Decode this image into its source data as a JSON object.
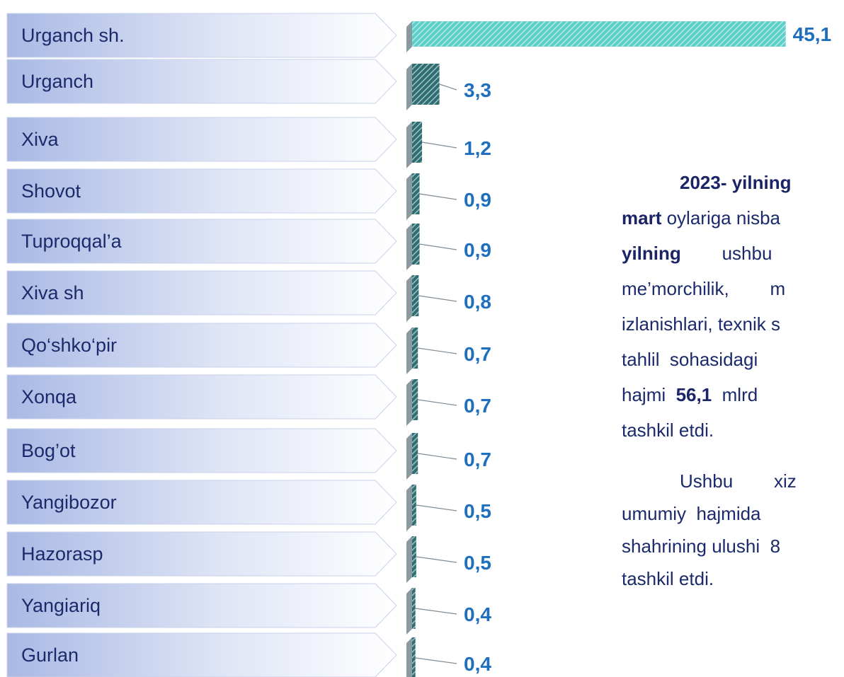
{
  "chart_data": {
    "type": "bar",
    "categories": [
      "Urganch sh.",
      "Urganch",
      "Xiva",
      "Shovot",
      "Tuproqqal’a",
      "Xiva sh",
      "Qo‘shko‘pir",
      "Xonqa",
      "Bog’ot",
      "Yangibozor",
      "Hazorasp",
      "Yangiariq",
      "Gurlan"
    ],
    "values": [
      45.1,
      3.3,
      1.2,
      0.9,
      0.9,
      0.8,
      0.7,
      0.7,
      0.7,
      0.5,
      0.5,
      0.4,
      0.4
    ],
    "value_labels": [
      "45,1",
      "3,3",
      "1,2",
      "0,9",
      "0,9",
      "0,8",
      "0,7",
      "0,7",
      "0,7",
      "0,5",
      "0,5",
      "0,4",
      "0,4"
    ],
    "color": "#5ccfc9"
  },
  "text": {
    "paragraphs": [
      [
        [
          {
            "text": "2023- yilning",
            "bold": true
          }
        ],
        [
          {
            "text": "mart",
            "bold": true
          },
          {
            "text": " oylariga nisba",
            "bold": false
          }
        ],
        [
          {
            "text": "yilning",
            "bold": true
          },
          {
            "text": "        ushbu",
            "bold": false
          }
        ],
        [
          {
            "text": "me’morchilik,        m",
            "bold": false
          }
        ],
        [
          {
            "text": "izlanishlari, texnik s",
            "bold": false
          }
        ],
        [
          {
            "text": "tahlil  sohasidagi",
            "bold": false
          }
        ],
        [
          {
            "text": "hajmi  ",
            "bold": false
          },
          {
            "text": "56,1",
            "bold": true
          },
          {
            "text": "  mlrd",
            "bold": false
          }
        ],
        [
          {
            "text": "tashkil etdi.",
            "bold": false
          }
        ]
      ],
      [
        [
          {
            "text": "Ushbu        xiz",
            "bold": false
          }
        ],
        [
          {
            "text": "umumiy  hajmida",
            "bold": false
          }
        ],
        [
          {
            "text": "shahrining ulushi  8",
            "bold": false
          }
        ],
        [
          {
            "text": "tashkil etdi.",
            "bold": false
          }
        ]
      ]
    ]
  }
}
